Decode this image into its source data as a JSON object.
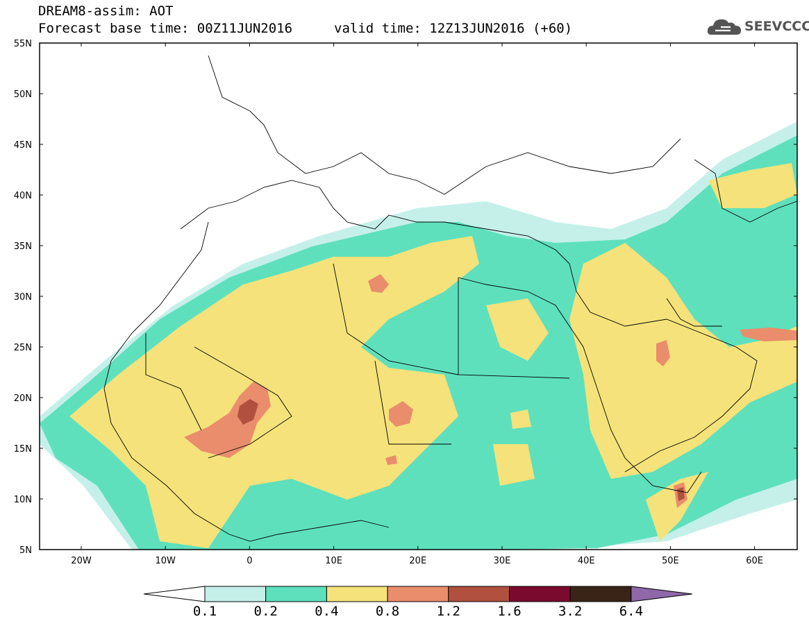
{
  "header": {
    "title": "DREAM8-assim: AOT",
    "base_time": "Forecast base time: 00Z11JUN2016",
    "valid_time": "valid time: 12Z13JUN2016 (+60)"
  },
  "logo": {
    "text": "SEEVCCC",
    "icon": "cloud-icon"
  },
  "map": {
    "lat_ticks": [
      "55N",
      "50N",
      "45N",
      "40N",
      "35N",
      "30N",
      "25N",
      "20N",
      "15N",
      "10N",
      "5N"
    ],
    "lon_ticks": [
      "20W",
      "10W",
      "0",
      "10E",
      "20E",
      "30E",
      "40E",
      "50E",
      "60E"
    ]
  },
  "colorbar": {
    "levels": [
      "0.1",
      "0.2",
      "0.4",
      "0.8",
      "1.2",
      "1.6",
      "3.2",
      "6.4"
    ],
    "colors": [
      "#ffffff",
      "#c5f0ea",
      "#5ee0bd",
      "#f5e27a",
      "#e98d6c",
      "#b1503e",
      "#7a0a2e",
      "#3a2418",
      "#8e68a8"
    ]
  }
}
